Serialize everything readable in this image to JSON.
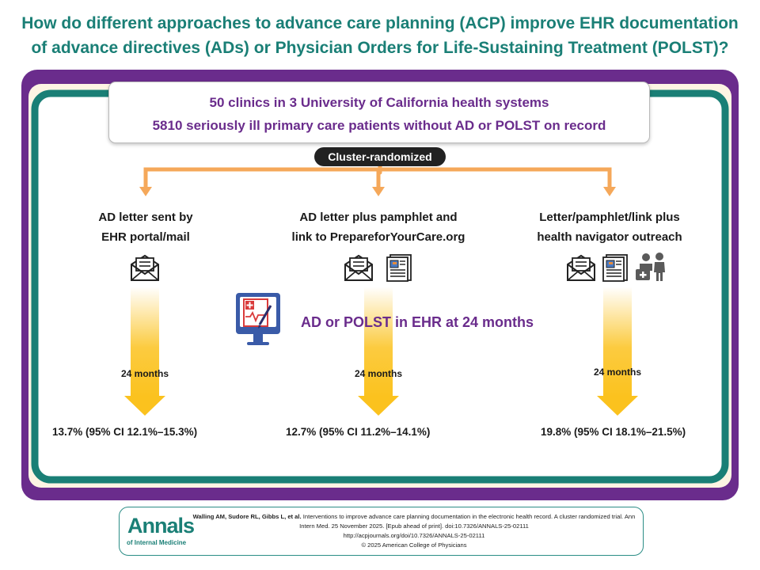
{
  "title": {
    "line1": "How do different approaches to advance care planning (ACP) improve EHR documentation",
    "line2": "of advance directives (ADs) or Physician Orders for Life-Sustaining Treatment (POLST)?"
  },
  "population": {
    "line1": "50 clinics in 3 University of California health systems",
    "line2": "5810 seriously ill primary care patients without AD or POLST on record"
  },
  "randomization_label": "Cluster-randomized",
  "outcome_label": "AD or POLST in EHR at 24 months",
  "arms": [
    {
      "line1": "AD letter sent by",
      "line2": "EHR portal/mail",
      "icons": [
        "envelope-letter-icon"
      ],
      "timepoint": "24 months",
      "result": "13.7% (95% CI 12.1%–15.3%)"
    },
    {
      "line1": "AD letter plus pamphlet and",
      "line2": "link to PrepareforYourCare.org",
      "icons": [
        "envelope-letter-icon",
        "pamphlet-icon"
      ],
      "timepoint": "24 months",
      "result": "12.7% (95% CI 11.2%–14.1%)"
    },
    {
      "line1": "Letter/pamphlet/link plus",
      "line2": "health navigator outreach",
      "icons": [
        "envelope-letter-icon",
        "pamphlet-icon",
        "health-navigator-icon"
      ],
      "timepoint": "24 months",
      "result": "19.8% (95% CI 18.1%–21.5%)"
    }
  ],
  "colors": {
    "teal": "#1a7f76",
    "purple": "#6a2c8c",
    "arrow_orange": "#f5a85a",
    "arrow_yellow": "#fbc21e",
    "cream": "#fdf4e3"
  },
  "footer": {
    "logo_main": "Annals",
    "logo_sub": "of Internal Medicine",
    "citation_authors": "Walling AM, Sudore RL, Gibbs L, et al.",
    "citation_rest": " Interventions to improve advance care planning documentation in the electronic health record. A cluster randomized trial. Ann Intern Med. 25 November 2025. [Epub ahead of print]. doi:10.7326/ANNALS-25-02111",
    "url": "http://acpjournals.org/doi/10.7326/ANNALS-25-02111",
    "copyright": "© 2025 American College of Physicians"
  }
}
